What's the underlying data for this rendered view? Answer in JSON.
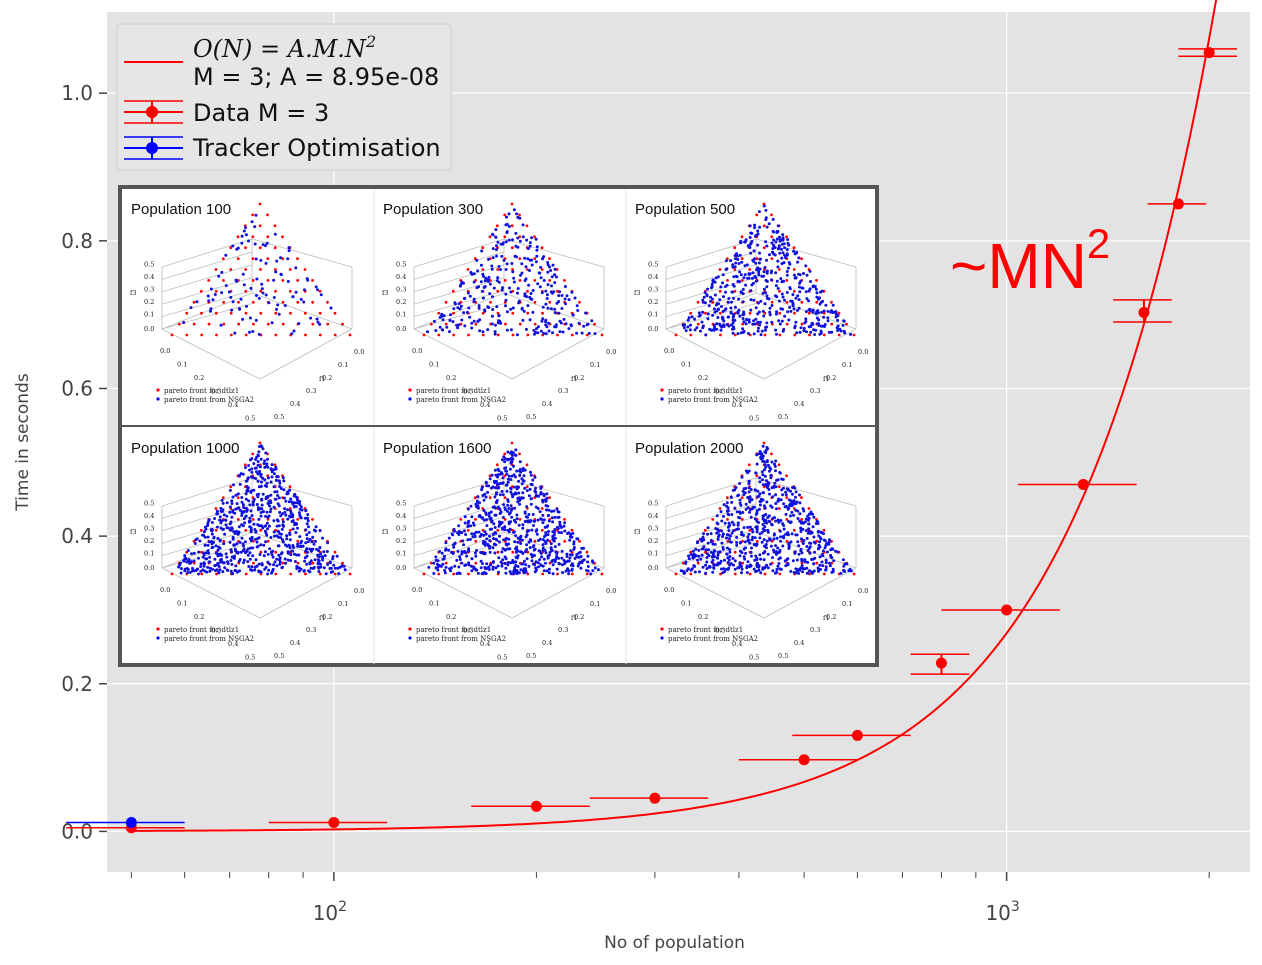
{
  "chart_data": {
    "type": "scatter",
    "xscale": "log",
    "xlim": [
      46,
      2300
    ],
    "ylim": [
      -0.055,
      1.11
    ],
    "grid": true,
    "xlabel": "No of population",
    "ylabel": "Time in seconds",
    "xticks": [
      {
        "value": 100,
        "base": "10",
        "exp": "2"
      },
      {
        "value": 1000,
        "base": "10",
        "exp": "3"
      }
    ],
    "yticks": [
      {
        "value": 0.0,
        "label": "0.0"
      },
      {
        "value": 0.2,
        "label": "0.2"
      },
      {
        "value": 0.4,
        "label": "0.4"
      },
      {
        "value": 0.6,
        "label": "0.6"
      },
      {
        "value": 0.8,
        "label": "0.8"
      },
      {
        "value": 1.0,
        "label": "1.0"
      }
    ],
    "fit": {
      "A": 8.95e-08,
      "M": 3,
      "color": "#ff0000"
    },
    "series": [
      {
        "name": "Data M = 3",
        "color": "#ff0000",
        "points": [
          {
            "x": 50,
            "y": 0.005,
            "xlo": 40,
            "xhi": 60
          },
          {
            "x": 100,
            "y": 0.012,
            "xlo": 80,
            "xhi": 120
          },
          {
            "x": 200,
            "y": 0.034,
            "xlo": 160,
            "xhi": 240
          },
          {
            "x": 300,
            "y": 0.045,
            "xlo": 240,
            "xhi": 360
          },
          {
            "x": 500,
            "y": 0.097,
            "xlo": 400,
            "xhi": 600
          },
          {
            "x": 600,
            "y": 0.13,
            "xlo": 480,
            "xhi": 720
          },
          {
            "x": 800,
            "y": 0.228,
            "xlo": 720,
            "xhi": 880,
            "ylo": 0.213,
            "yhi": 0.24
          },
          {
            "x": 1000,
            "y": 0.3,
            "xlo": 800,
            "xhi": 1200
          },
          {
            "x": 1300,
            "y": 0.47,
            "xlo": 1040,
            "xhi": 1560
          },
          {
            "x": 1600,
            "y": 0.703,
            "xlo": 1440,
            "xhi": 1760,
            "ylo": 0.69,
            "yhi": 0.72
          },
          {
            "x": 1800,
            "y": 0.85,
            "xlo": 1620,
            "xhi": 1980
          },
          {
            "x": 2000,
            "y": 1.055,
            "xlo": 1800,
            "xhi": 2200,
            "ylo": 1.05,
            "yhi": 1.06
          }
        ]
      },
      {
        "name": "Tracker Optimisation",
        "color": "#0000ff",
        "points": [
          {
            "x": 50,
            "y": 0.012,
            "xlo": 40,
            "xhi": 60
          }
        ]
      }
    ],
    "legend": {
      "position": "top-left",
      "fit_formula_lhs": "O(N) = A.M.N",
      "fit_formula_sup": "2",
      "fit_params": "M = 3; A = 8.95e-08",
      "data_label": "Data M = 3",
      "tracker_label": "Tracker Optimisation"
    },
    "annotation": {
      "text": "~MN",
      "sup": "2",
      "color": "#ff0000"
    },
    "inset": {
      "panels": [
        {
          "title": "Population 100",
          "blue_points": 100
        },
        {
          "title": "Population 300",
          "blue_points": 300
        },
        {
          "title": "Population 500",
          "blue_points": 500
        },
        {
          "title": "Population 1000",
          "blue_points": 1000
        },
        {
          "title": "Population 1600",
          "blue_points": 1600
        },
        {
          "title": "Population 2000",
          "blue_points": 2000
        }
      ],
      "legend_red": "pareto front for dtlz1",
      "legend_blue": "pareto front from NSGA2",
      "axis_ticks_left": [
        "0.5",
        "0.4",
        "0.3",
        "0.2",
        "0.1",
        "0.0"
      ],
      "axis_ticks_bottom_left": [
        "0.0",
        "0.1",
        "0.2",
        "0.3",
        "0.4",
        "0.5"
      ],
      "axis_ticks_bottom_right": [
        "0.0",
        "0.1",
        "0.2",
        "0.3",
        "0.4",
        "0.5"
      ],
      "axis_label_z": "f3",
      "axis_label_x": "f1"
    }
  }
}
